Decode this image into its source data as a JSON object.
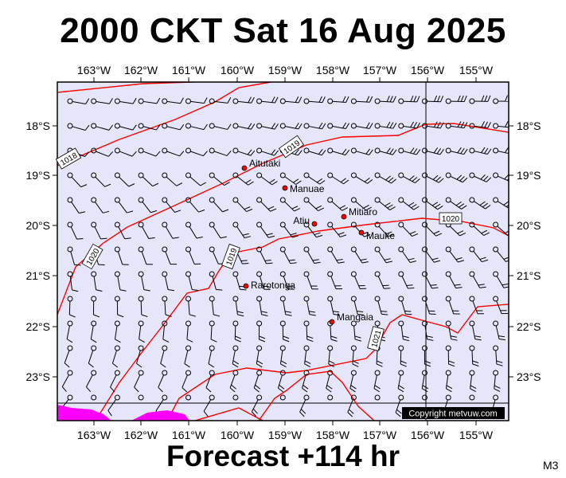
{
  "title": "2000 CKT Sat 16 Aug 2025",
  "footer": "Forecast +114 hr",
  "model": "M3",
  "copyright": "Copyright metvuw.com",
  "colors": {
    "ocean": "#e6e6fa",
    "land": "#ff00ff",
    "isobar": "#ff0000",
    "town": "#ff0000",
    "frame": "#000000"
  },
  "lon_labels": [
    "163°W",
    "162°W",
    "161°W",
    "160°W",
    "159°W",
    "158°W",
    "157°W",
    "156°W",
    "155°W"
  ],
  "lat_labels": [
    "18°S",
    "19°S",
    "20°S",
    "21°S",
    "22°S",
    "23°S"
  ],
  "isobar_labels": [
    "1018",
    "1019",
    "1019",
    "1020",
    "1020",
    "1021"
  ],
  "places": [
    {
      "name": "Aitutaki"
    },
    {
      "name": "Manuae"
    },
    {
      "name": "Mitiaro"
    },
    {
      "name": "Atiu"
    },
    {
      "name": "Mauke"
    },
    {
      "name": "Rarotonga"
    },
    {
      "name": "Mangaia"
    }
  ]
}
